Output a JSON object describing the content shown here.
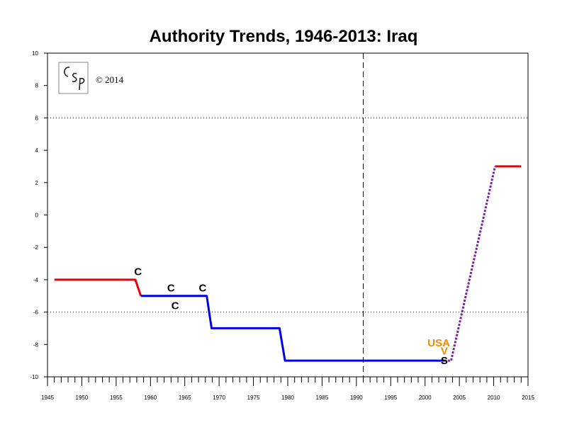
{
  "chart_data": {
    "type": "line",
    "title": "Authority Trends, 1946-2013: Iraq",
    "copyright": "© 2014",
    "logo_text": "CSP",
    "xlim": [
      1945,
      2015
    ],
    "ylim": [
      -10,
      10
    ],
    "x_ticks": [
      1945,
      1950,
      1955,
      1960,
      1965,
      1970,
      1975,
      1980,
      1985,
      1990,
      1995,
      2000,
      2005,
      2010,
      2015
    ],
    "x_tick_labels": [
      "1945",
      "1950",
      "1955",
      "1960",
      "1965",
      "1970",
      "1975",
      "1980",
      "1985",
      "1990",
      "1995",
      "2000",
      "2005",
      "2010",
      "2015"
    ],
    "y_ticks": [
      -10,
      -8,
      -6,
      -4,
      -2,
      0,
      2,
      4,
      6,
      8,
      10
    ],
    "y_tick_labels": [
      "-10",
      "-8",
      "-6",
      "-4",
      "-2",
      "0",
      "2",
      "4",
      "6",
      "8",
      "10"
    ],
    "reference_lines_y": [
      6,
      -6
    ],
    "vertical_line_x": 1991,
    "grid": false,
    "series": [
      {
        "color": "#e8000b",
        "style": "solid",
        "points": [
          [
            1946,
            -4
          ],
          [
            1957.8,
            -4
          ],
          [
            1958.6,
            -5
          ]
        ]
      },
      {
        "color": "#0000e6",
        "style": "solid",
        "points": [
          [
            1958.6,
            -5
          ],
          [
            1968.2,
            -5
          ],
          [
            1968.9,
            -7
          ],
          [
            1978.8,
            -7
          ],
          [
            1979.6,
            -9
          ],
          [
            2002.8,
            -9
          ]
        ]
      },
      {
        "color": "#7a1fa2",
        "style": "dotted",
        "points": [
          [
            2002.8,
            -9
          ],
          [
            2003.8,
            -9
          ],
          [
            2010.2,
            3
          ]
        ]
      },
      {
        "color": "#e8000b",
        "style": "solid",
        "points": [
          [
            2010.2,
            3
          ],
          [
            2014,
            3
          ]
        ]
      }
    ],
    "annotations": [
      {
        "text": "C",
        "x": 1958.2,
        "y": -3.5,
        "color": "#000000"
      },
      {
        "text": "C",
        "x": 1963.0,
        "y": -4.5,
        "color": "#000000"
      },
      {
        "text": "C",
        "x": 1967.6,
        "y": -4.5,
        "color": "#000000"
      },
      {
        "text": "C",
        "x": 1963.6,
        "y": -5.6,
        "color": "#000000"
      },
      {
        "text": "USA",
        "x": 2002.0,
        "y": -7.9,
        "color": "#f08a00"
      },
      {
        "text": "V",
        "x": 2002.8,
        "y": -8.4,
        "color": "#f08a00"
      },
      {
        "text": "S",
        "x": 2002.8,
        "y": -9.0,
        "color": "#000000"
      }
    ]
  }
}
